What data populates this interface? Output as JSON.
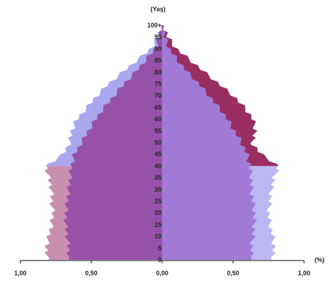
{
  "chart_data": {
    "type": "population-pyramid",
    "title": "",
    "ylabel": "(Yaş)",
    "xlabel": "(%)",
    "x_tick_labels": [
      "1,00",
      "0,50",
      "0,00",
      "0,50",
      "1,00"
    ],
    "x_ticks": [
      -1.0,
      -0.5,
      0.0,
      0.5,
      1.0
    ],
    "xlim": [
      -1.0,
      1.0
    ],
    "age_tick_labels": [
      "0",
      "5",
      "10",
      "15",
      "20",
      "25",
      "30",
      "35",
      "40",
      "45",
      "50",
      "55",
      "60",
      "65",
      "70",
      "75",
      "80",
      "85",
      "90",
      "95",
      "100+"
    ],
    "ages": [
      0,
      5,
      10,
      15,
      20,
      25,
      30,
      35,
      40,
      45,
      50,
      55,
      60,
      65,
      70,
      75,
      80,
      85,
      90,
      95,
      100
    ],
    "series": [
      {
        "side": "left",
        "role": "outer",
        "lower_color": "#c98fb0",
        "upper_color": "#a9a7ee",
        "values": [
          0.8,
          0.82,
          0.8,
          0.78,
          0.77,
          0.78,
          0.78,
          0.8,
          0.82,
          0.7,
          0.65,
          0.64,
          0.6,
          0.53,
          0.46,
          0.38,
          0.28,
          0.18,
          0.08,
          0.03,
          0.01
        ]
      },
      {
        "side": "left",
        "role": "inner",
        "color": "#9652a8",
        "values": [
          0.66,
          0.66,
          0.67,
          0.68,
          0.68,
          0.67,
          0.66,
          0.65,
          0.64,
          0.62,
          0.57,
          0.52,
          0.47,
          0.41,
          0.34,
          0.27,
          0.19,
          0.12,
          0.05,
          0.02,
          0.005
        ]
      },
      {
        "side": "right",
        "role": "outer",
        "lower_color": "#bcb6f2",
        "upper_color": "#9a2e62",
        "values": [
          0.77,
          0.79,
          0.78,
          0.76,
          0.75,
          0.76,
          0.77,
          0.79,
          0.82,
          0.7,
          0.63,
          0.66,
          0.64,
          0.58,
          0.5,
          0.4,
          0.3,
          0.2,
          0.1,
          0.04,
          0.01
        ]
      },
      {
        "side": "right",
        "role": "inner",
        "color": "#a07ad6",
        "values": [
          0.63,
          0.63,
          0.64,
          0.65,
          0.65,
          0.64,
          0.63,
          0.63,
          0.62,
          0.6,
          0.56,
          0.51,
          0.46,
          0.4,
          0.33,
          0.26,
          0.18,
          0.11,
          0.05,
          0.02,
          0.005
        ]
      }
    ],
    "grid": false
  }
}
